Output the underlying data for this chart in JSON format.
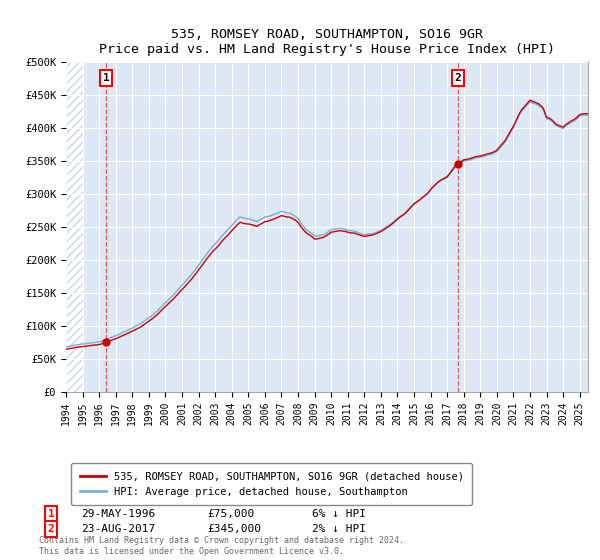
{
  "title": "535, ROMSEY ROAD, SOUTHAMPTON, SO16 9GR",
  "subtitle": "Price paid vs. HM Land Registry's House Price Index (HPI)",
  "sale1_date": 1996.41,
  "sale1_price": 75000,
  "sale1_label": "1",
  "sale2_date": 2017.64,
  "sale2_price": 345000,
  "sale2_label": "2",
  "ylim": [
    0,
    500000
  ],
  "xlim": [
    1994.0,
    2025.5
  ],
  "yticks": [
    0,
    50000,
    100000,
    150000,
    200000,
    250000,
    300000,
    350000,
    400000,
    450000,
    500000
  ],
  "ytick_labels": [
    "£0",
    "£50K",
    "£100K",
    "£150K",
    "£200K",
    "£250K",
    "£300K",
    "£350K",
    "£400K",
    "£450K",
    "£500K"
  ],
  "xticks": [
    1994,
    1995,
    1996,
    1997,
    1998,
    1999,
    2000,
    2001,
    2002,
    2003,
    2004,
    2005,
    2006,
    2007,
    2008,
    2009,
    2010,
    2011,
    2012,
    2013,
    2014,
    2015,
    2016,
    2017,
    2018,
    2019,
    2020,
    2021,
    2022,
    2023,
    2024,
    2025
  ],
  "legend_line1": "535, ROMSEY ROAD, SOUTHAMPTON, SO16 9GR (detached house)",
  "legend_line2": "HPI: Average price, detached house, Southampton",
  "annotation1_date": "29-MAY-1996",
  "annotation1_price": "£75,000",
  "annotation1_hpi": "6% ↓ HPI",
  "annotation2_date": "23-AUG-2017",
  "annotation2_price": "£345,000",
  "annotation2_hpi": "2% ↓ HPI",
  "footnote": "Contains HM Land Registry data © Crown copyright and database right 2024.\nThis data is licensed under the Open Government Licence v3.0.",
  "line_color_red": "#cc0000",
  "line_color_blue": "#7aadd4",
  "plot_bg_color": "#dde8f5",
  "grid_color": "#ffffff",
  "vline_color": "#dd4444",
  "hatch_color": "#c8d4e4"
}
